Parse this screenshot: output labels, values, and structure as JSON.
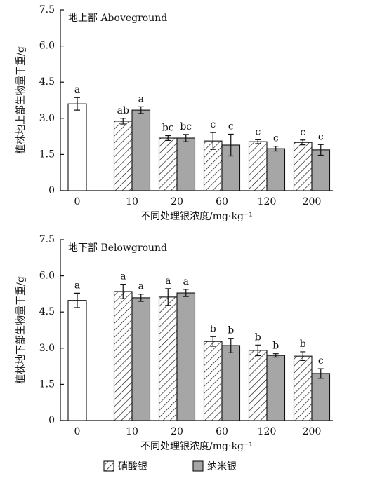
{
  "chart_data": [
    {
      "type": "bar",
      "title": "地上部 Aboveground",
      "x_label": "不同处理银浓度/mg·kg⁻¹",
      "y_label": "植株地上部生物量干重/g",
      "categories": [
        "0",
        "10",
        "20",
        "60",
        "120",
        "200"
      ],
      "ylim": [
        0,
        7.5
      ],
      "yticks": [
        0,
        1.5,
        {
          "value": 3,
          "label": "3.0"
        },
        4.5,
        {
          "value": 6,
          "label": "6.0"
        },
        7.5
      ],
      "series": [
        {
          "color": "#ffffff",
          "values": [
            3.6,
            null,
            null,
            null,
            null,
            null
          ],
          "errors": [
            0.26,
            null,
            null,
            null,
            null,
            null
          ],
          "letters": [
            "a",
            null,
            null,
            null,
            null,
            null
          ]
        },
        {
          "name": "硝酸银",
          "color": "#ffffff",
          "pattern": "hatch",
          "values": [
            null,
            2.88,
            2.18,
            2.06,
            2.03,
            2.0
          ],
          "errors": [
            null,
            0.12,
            0.1,
            0.35,
            0.08,
            0.1
          ],
          "letters": [
            null,
            "ab",
            "bc",
            "c",
            "c",
            "c"
          ]
        },
        {
          "name": "纳米银",
          "color": "#a6a6a6",
          "values": [
            null,
            3.34,
            2.18,
            1.89,
            1.74,
            1.69
          ],
          "errors": [
            null,
            0.14,
            0.15,
            0.45,
            0.1,
            0.22
          ],
          "letters": [
            null,
            "a",
            "bc",
            "c",
            "c",
            "c"
          ]
        }
      ]
    },
    {
      "type": "bar",
      "title": "地下部 Belowground",
      "x_label": "不同处理银浓度/mg·kg⁻¹",
      "y_label": "植株地下部生物量干重/g",
      "categories": [
        "0",
        "10",
        "20",
        "60",
        "120",
        "200"
      ],
      "ylim": [
        0,
        7.5
      ],
      "yticks": [
        0,
        1.5,
        {
          "value": 3,
          "label": "3.0"
        },
        4.5,
        {
          "value": 6,
          "label": "6.0"
        },
        7.5
      ],
      "series": [
        {
          "color": "#ffffff",
          "values": [
            4.98,
            null,
            null,
            null,
            null,
            null
          ],
          "errors": [
            0.3,
            null,
            null,
            null,
            null,
            null
          ],
          "letters": [
            "a",
            null,
            null,
            null,
            null,
            null
          ]
        },
        {
          "color": "#ffffff",
          "pattern": "hatch",
          "values": [
            null,
            5.35,
            5.12,
            3.28,
            2.91,
            2.67
          ],
          "errors": [
            null,
            0.3,
            0.35,
            0.2,
            0.22,
            0.18
          ],
          "letters": [
            null,
            "a",
            "a",
            "b",
            "b",
            "b"
          ]
        },
        {
          "color": "#a6a6a6",
          "values": [
            null,
            5.09,
            5.29,
            3.11,
            2.7,
            1.95
          ],
          "errors": [
            null,
            0.15,
            0.15,
            0.3,
            0.07,
            0.2
          ],
          "letters": [
            null,
            "a",
            "a",
            "b",
            "b",
            "c"
          ]
        }
      ]
    }
  ]
}
